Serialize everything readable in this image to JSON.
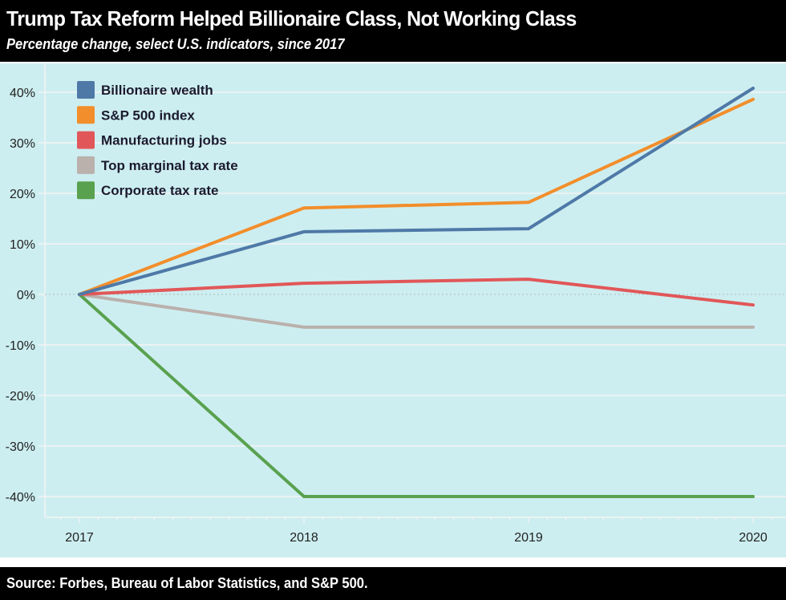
{
  "colors": {
    "header_bg": "#000000",
    "plot_bg": "#cdeef0",
    "gridline": "#f4f4f4"
  },
  "chart_data": {
    "type": "line",
    "title": "Trump Tax Reform Helped Billionaire Class, Not Working Class",
    "subtitle": "Percentage change, select U.S. indicators, since 2017",
    "source": "Source: Forbes, Bureau of Labor Statistics, and S&P 500.",
    "xlabel": "",
    "ylabel": "",
    "x": [
      "2017",
      "2018",
      "2019",
      "2020"
    ],
    "ylim": [
      -45,
      43
    ],
    "yticks": [
      40,
      30,
      20,
      10,
      0,
      -10,
      -20,
      -30,
      -40
    ],
    "ytick_labels": [
      "40%",
      "30%",
      "20%",
      "10%",
      "0%",
      "-10%",
      "-20%",
      "-30%",
      "-40%"
    ],
    "grid": true,
    "legend_position": "top-left",
    "series": [
      {
        "name": "Billionaire wealth",
        "color": "#4e79a7",
        "values": [
          0,
          12.4,
          13.0,
          40.8
        ]
      },
      {
        "name": "S&P 500 index",
        "color": "#f28e2b",
        "values": [
          0,
          17.1,
          18.2,
          38.6
        ]
      },
      {
        "name": "Manufacturing jobs",
        "color": "#e15759",
        "values": [
          0,
          2.2,
          3.0,
          -2.1
        ]
      },
      {
        "name": "Top marginal tax rate",
        "color": "#bab0ac",
        "values": [
          0,
          -6.5,
          -6.5,
          -6.5
        ]
      },
      {
        "name": "Corporate tax rate",
        "color": "#59a14f",
        "values": [
          0,
          -40,
          -40,
          -40
        ]
      }
    ]
  }
}
